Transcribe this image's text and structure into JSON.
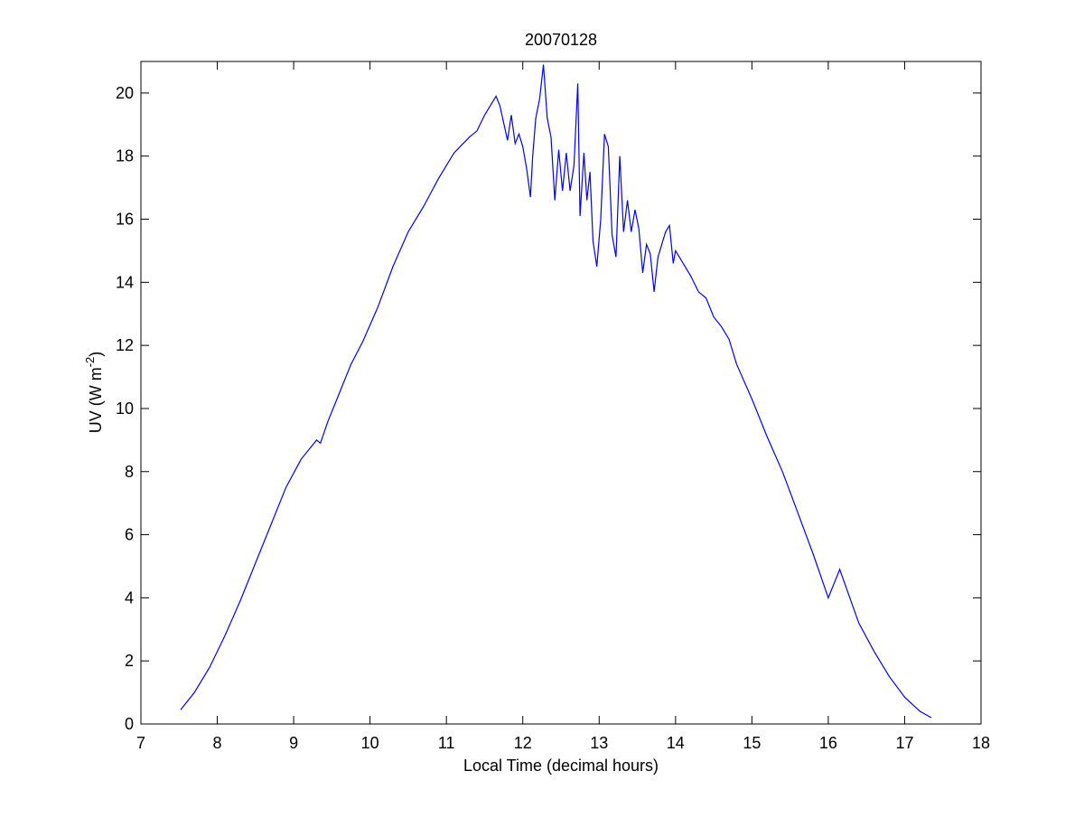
{
  "chart_data": {
    "type": "line",
    "title": "20070128",
    "xlabel": "Local Time (decimal hours)",
    "ylabel": {
      "main": "UV (W m",
      "superscript": "-2",
      "close": ")"
    },
    "xlim": [
      7,
      18
    ],
    "ylim": [
      0,
      21
    ],
    "xticks": [
      7,
      8,
      9,
      10,
      11,
      12,
      13,
      14,
      15,
      16,
      17,
      18
    ],
    "yticks": [
      0,
      2,
      4,
      6,
      8,
      10,
      12,
      14,
      16,
      18,
      20
    ],
    "grid": false,
    "line_color": "#0000ff",
    "series": [
      {
        "x": [
          7.52,
          7.7,
          7.9,
          8.1,
          8.3,
          8.5,
          8.7,
          8.9,
          9.1,
          9.3,
          9.35,
          9.45,
          9.55,
          9.75,
          9.9,
          10.1,
          10.3,
          10.5,
          10.7,
          10.9,
          11.1,
          11.3,
          11.4,
          11.5,
          11.6,
          11.65,
          11.7,
          11.8,
          11.85,
          11.9,
          11.95,
          12.0,
          12.05,
          12.1,
          12.13,
          12.17,
          12.22,
          12.27,
          12.32,
          12.37,
          12.42,
          12.47,
          12.52,
          12.57,
          12.62,
          12.67,
          12.72,
          12.75,
          12.8,
          12.84,
          12.88,
          12.92,
          12.97,
          13.02,
          13.07,
          13.12,
          13.17,
          13.22,
          13.27,
          13.32,
          13.37,
          13.42,
          13.47,
          13.52,
          13.57,
          13.62,
          13.67,
          13.72,
          13.77,
          13.82,
          13.87,
          13.92,
          13.97,
          14.0,
          14.1,
          14.2,
          14.3,
          14.4,
          14.5,
          14.6,
          14.7,
          14.8,
          15.0,
          15.2,
          15.4,
          15.6,
          15.8,
          16.0,
          16.15,
          16.4,
          16.6,
          16.8,
          17.0,
          17.2,
          17.35
        ],
        "y": [
          0.45,
          1.0,
          1.8,
          2.8,
          3.9,
          5.1,
          6.3,
          7.5,
          8.4,
          9.0,
          8.9,
          9.6,
          10.2,
          11.4,
          12.1,
          13.2,
          14.5,
          15.6,
          16.4,
          17.3,
          18.1,
          18.6,
          18.8,
          19.3,
          19.7,
          19.9,
          19.6,
          18.5,
          19.3,
          18.4,
          18.7,
          18.3,
          17.6,
          16.7,
          18.0,
          19.2,
          19.8,
          20.9,
          19.2,
          18.6,
          16.6,
          18.2,
          16.9,
          18.1,
          16.9,
          17.7,
          20.3,
          16.1,
          18.1,
          16.6,
          17.5,
          15.3,
          14.5,
          16.0,
          18.7,
          18.3,
          15.5,
          14.8,
          18.0,
          15.6,
          16.6,
          15.6,
          16.3,
          15.7,
          14.3,
          15.2,
          14.9,
          13.7,
          14.8,
          15.2,
          15.6,
          15.8,
          14.6,
          15.0,
          14.6,
          14.2,
          13.7,
          13.5,
          12.9,
          12.6,
          12.2,
          11.4,
          10.3,
          9.1,
          8.0,
          6.7,
          5.4,
          4.0,
          4.9,
          3.2,
          2.3,
          1.5,
          0.85,
          0.4,
          0.2
        ]
      }
    ]
  }
}
